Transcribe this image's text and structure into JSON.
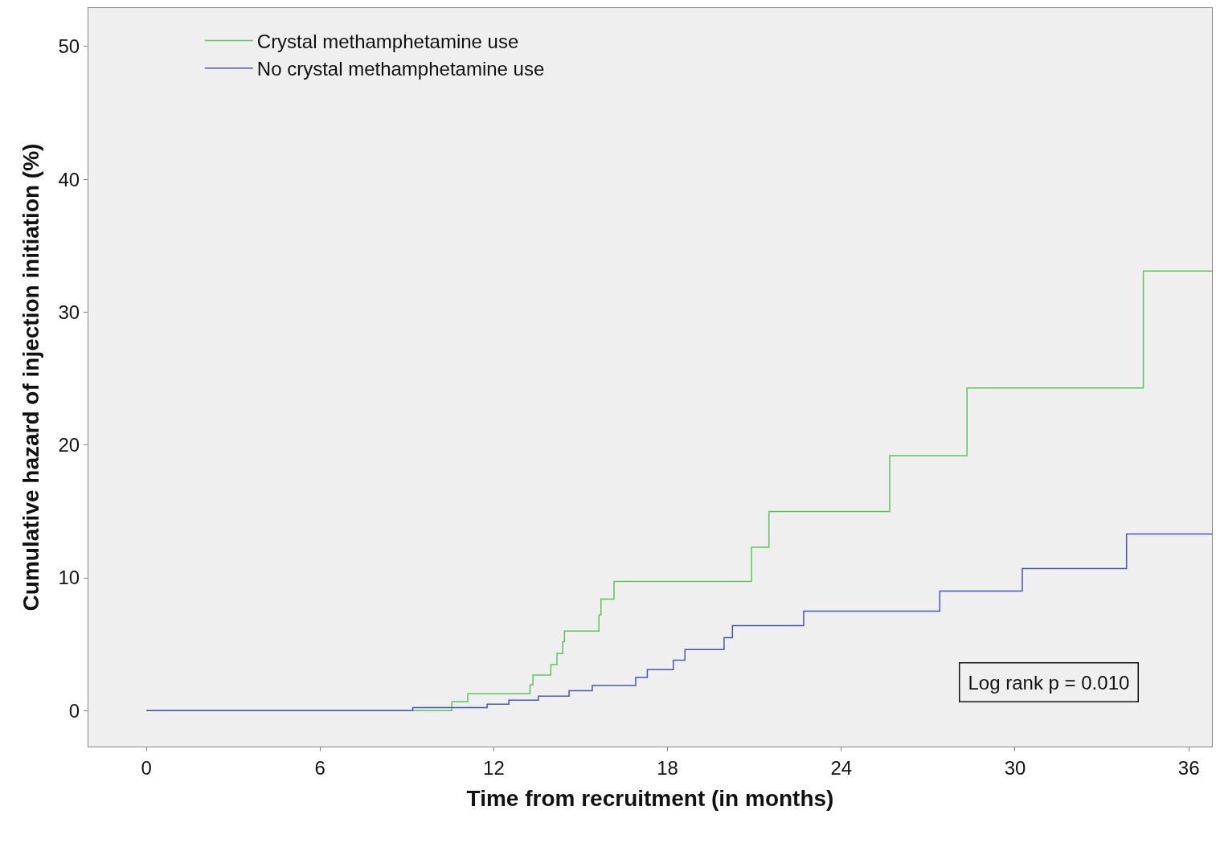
{
  "chart_data": {
    "type": "step",
    "xlabel": "Time from recruitment (in months)",
    "ylabel": "Cumulative hazard of injection initiation (%)",
    "xlim": [
      -2,
      36.8
    ],
    "ylim": [
      -2.7,
      52.9
    ],
    "xticks": [
      0,
      6,
      12,
      18,
      24,
      30,
      36
    ],
    "yticks": [
      0,
      10,
      20,
      30,
      40,
      50
    ],
    "grid": false,
    "legend": "top left",
    "marker": "none",
    "line_style": "solid",
    "annotations": [
      "Log rank p = 0.010"
    ],
    "series": [
      {
        "name": "Crystal methamphetamine use",
        "color": "#5cc45c",
        "x": [
          0,
          10.55,
          11.1,
          13.25,
          13.35,
          13.97,
          14.18,
          14.38,
          14.44,
          15.63,
          15.7,
          16.15,
          20.9,
          21.5,
          25.67,
          28.34,
          34.43,
          36.8
        ],
        "values": [
          0,
          0.67,
          1.28,
          1.95,
          2.68,
          3.47,
          4.3,
          5.2,
          6.0,
          7.2,
          8.4,
          9.74,
          12.3,
          15.0,
          19.2,
          24.3,
          33.1,
          33.1
        ]
      },
      {
        "name": "No crystal methamphetamine use",
        "color": "#4a55b8",
        "x": [
          0,
          9.2,
          11.77,
          12.52,
          13.54,
          14.6,
          15.4,
          16.9,
          17.3,
          18.2,
          18.6,
          19.95,
          20.24,
          22.7,
          27.4,
          30.25,
          33.85,
          36.8
        ],
        "values": [
          0,
          0.24,
          0.49,
          0.8,
          1.1,
          1.5,
          1.9,
          2.5,
          3.1,
          3.8,
          4.6,
          5.5,
          6.4,
          7.5,
          9.0,
          10.7,
          13.3,
          13.3
        ]
      }
    ]
  }
}
